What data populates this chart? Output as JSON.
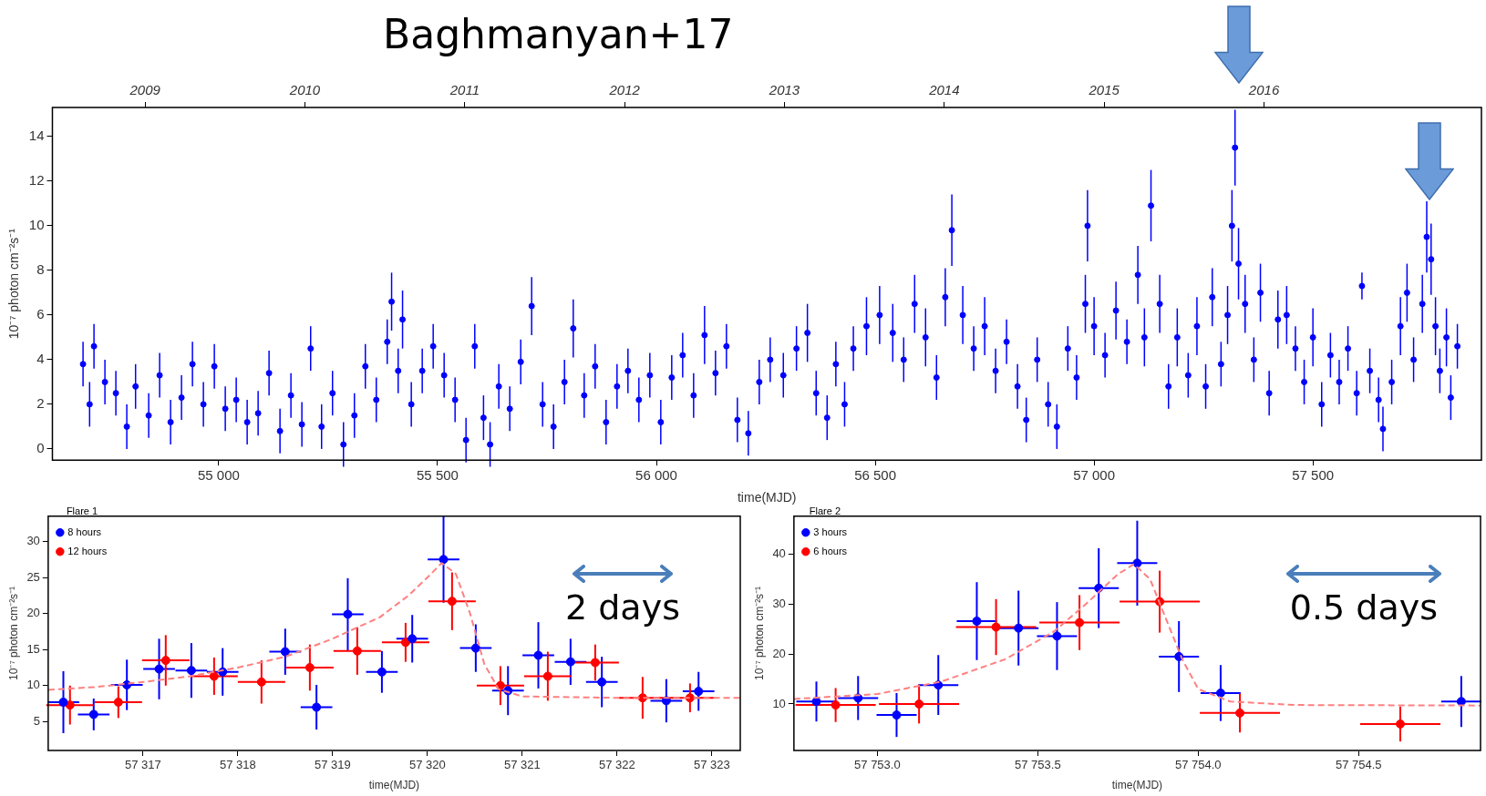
{
  "chart_data": [
    {
      "type": "scatter",
      "title": "Baghmanyan+17",
      "xlabel": "time(MJD)",
      "ylabel": "10⁻⁷ photon cm⁻²s⁻¹",
      "marker": "circle",
      "xlim": [
        54620,
        57885
      ],
      "xticks": [
        {
          "value": 55000,
          "label": "55 000"
        },
        {
          "value": 55500,
          "label": "55 500"
        },
        {
          "value": 56000,
          "label": "56 000"
        },
        {
          "value": 56500,
          "label": "56 500"
        },
        {
          "value": 57000,
          "label": "57 000"
        },
        {
          "value": 57500,
          "label": "57 500"
        }
      ],
      "x2lim": [
        2008.42,
        2017.36
      ],
      "x2ticks": [
        2009,
        2010,
        2011,
        2012,
        2013,
        2014,
        2015,
        2016
      ],
      "ylim": [
        -0.5,
        15.3
      ],
      "yticks": [
        0,
        2,
        4,
        6,
        8,
        10,
        12,
        14
      ],
      "series": [
        {
          "color": "#0000ff",
          "x": [
            54690,
            54705,
            54715,
            54740,
            54765,
            54790,
            54810,
            54840,
            54865,
            54890,
            54915,
            54940,
            54965,
            54990,
            55015,
            55040,
            55065,
            55090,
            55115,
            55140,
            55165,
            55190,
            55210,
            55235,
            55260,
            55285,
            55310,
            55335,
            55360,
            55385,
            55395,
            55410,
            55420,
            55440,
            55465,
            55490,
            55515,
            55540,
            55565,
            55585,
            55605,
            55620,
            55640,
            55665,
            55690,
            55715,
            55740,
            55765,
            55790,
            55810,
            55835,
            55860,
            55885,
            55910,
            55935,
            55960,
            55985,
            56010,
            56035,
            56060,
            56085,
            56110,
            56135,
            56160,
            56185,
            56210,
            56235,
            56260,
            56290,
            56320,
            56345,
            56365,
            56390,
            56410,
            56430,
            56450,
            56480,
            56510,
            56540,
            56565,
            56590,
            56615,
            56640,
            56660,
            56675,
            56700,
            56725,
            56750,
            56775,
            56800,
            56825,
            56845,
            56870,
            56895,
            56915,
            56940,
            56960,
            56980,
            56985,
            57000,
            57025,
            57050,
            57075,
            57100,
            57115,
            57130,
            57150,
            57170,
            57190,
            57215,
            57235,
            57255,
            57270,
            57290,
            57305,
            57315,
            57322,
            57330,
            57345,
            57365,
            57380,
            57400,
            57420,
            57440,
            57460,
            57480,
            57500,
            57520,
            57540,
            57560,
            57580,
            57600,
            57612,
            57630,
            57650,
            57660,
            57680,
            57700,
            57715,
            57730,
            57750,
            57760,
            57770,
            57780,
            57790,
            57805,
            57815,
            57830
          ],
          "values": [
            3.8,
            2.0,
            4.6,
            3.0,
            2.5,
            1.0,
            2.8,
            1.5,
            3.3,
            1.2,
            2.3,
            3.8,
            2.0,
            3.7,
            1.8,
            2.2,
            1.2,
            1.6,
            3.4,
            0.8,
            2.4,
            1.1,
            4.5,
            1.0,
            2.5,
            0.2,
            1.5,
            3.7,
            2.2,
            4.8,
            6.6,
            3.5,
            5.8,
            2.0,
            3.5,
            4.6,
            3.3,
            2.2,
            0.4,
            4.6,
            1.4,
            0.2,
            2.8,
            1.8,
            3.9,
            6.4,
            2.0,
            1.0,
            3.0,
            5.4,
            2.4,
            3.7,
            1.2,
            2.8,
            3.5,
            2.2,
            3.3,
            1.2,
            3.2,
            4.2,
            2.4,
            5.1,
            3.4,
            4.6,
            1.3,
            0.7,
            3.0,
            4.0,
            3.3,
            4.5,
            5.2,
            2.5,
            1.4,
            3.8,
            2.0,
            4.5,
            5.5,
            6.0,
            5.2,
            4.0,
            6.5,
            5.0,
            3.2,
            6.8,
            9.8,
            6.0,
            4.5,
            5.5,
            3.5,
            4.8,
            2.8,
            1.3,
            4.0,
            2.0,
            1.0,
            4.5,
            3.2,
            6.5,
            10.0,
            5.5,
            4.2,
            6.2,
            4.8,
            7.8,
            5.0,
            10.9,
            6.5,
            2.8,
            5.0,
            3.3,
            5.5,
            2.8,
            6.8,
            3.8,
            6.0,
            10.0,
            13.5,
            8.3,
            6.5,
            4.0,
            7.0,
            2.5,
            5.8,
            6.0,
            4.5,
            3.0,
            5.0,
            2.0,
            4.2,
            3.0,
            4.5,
            2.5,
            7.3,
            3.5,
            2.2,
            0.9,
            3.0,
            5.5,
            7.0,
            4.0,
            6.5,
            9.5,
            8.5,
            5.5,
            3.5,
            5.0,
            2.3,
            4.6
          ],
          "errors": [
            1.0,
            1.0,
            1.0,
            1.0,
            1.0,
            1.0,
            1.0,
            1.0,
            1.0,
            1.0,
            1.0,
            1.0,
            1.0,
            1.0,
            1.0,
            1.0,
            1.0,
            1.0,
            1.0,
            1.0,
            1.0,
            1.0,
            1.0,
            1.0,
            1.0,
            1.0,
            1.0,
            1.0,
            1.0,
            1.0,
            1.3,
            1.0,
            1.3,
            1.0,
            1.0,
            1.0,
            1.0,
            1.0,
            1.0,
            1.0,
            1.0,
            1.0,
            1.0,
            1.0,
            1.0,
            1.3,
            1.0,
            1.0,
            1.0,
            1.3,
            1.0,
            1.0,
            1.0,
            1.0,
            1.0,
            1.0,
            1.0,
            1.0,
            1.0,
            1.0,
            1.0,
            1.3,
            1.0,
            1.0,
            1.0,
            1.0,
            1.0,
            1.0,
            1.0,
            1.0,
            1.3,
            1.0,
            1.0,
            1.0,
            1.0,
            1.0,
            1.3,
            1.3,
            1.3,
            1.0,
            1.3,
            1.3,
            1.0,
            1.3,
            1.6,
            1.3,
            1.0,
            1.3,
            1.0,
            1.0,
            1.0,
            1.0,
            1.0,
            1.0,
            1.0,
            1.0,
            1.0,
            1.3,
            1.6,
            1.3,
            1.0,
            1.3,
            1.0,
            1.3,
            1.3,
            1.6,
            1.3,
            1.0,
            1.3,
            1.0,
            1.3,
            1.0,
            1.3,
            1.0,
            1.3,
            1.6,
            1.7,
            1.6,
            1.3,
            1.0,
            1.3,
            1.0,
            1.3,
            1.3,
            1.0,
            1.0,
            1.3,
            1.0,
            1.0,
            1.0,
            1.0,
            1.0,
            0.6,
            1.0,
            1.0,
            1.0,
            1.0,
            1.3,
            1.3,
            1.0,
            1.3,
            1.6,
            1.6,
            1.3,
            1.0,
            1.3,
            1.0,
            1.0
          ]
        }
      ]
    },
    {
      "type": "scatter",
      "xlabel": "time(MJD)",
      "ylabel": "10⁻⁷ photon cm⁻²s⁻¹",
      "marker": "circle",
      "legend": "top left",
      "legend_title": "Flare 1",
      "annotations": [
        "2 days"
      ],
      "xlim": [
        57316.0,
        57323.3
      ],
      "xticks": [
        {
          "value": 57317,
          "label": "57 317"
        },
        {
          "value": 57318,
          "label": "57 318"
        },
        {
          "value": 57319,
          "label": "57 319"
        },
        {
          "value": 57320,
          "label": "57 320"
        },
        {
          "value": 57321,
          "label": "57 321"
        },
        {
          "value": 57322,
          "label": "57 322"
        },
        {
          "value": 57323,
          "label": "57 323"
        }
      ],
      "ylim": [
        1,
        33.5
      ],
      "yticks": [
        5,
        10,
        15,
        20,
        25,
        30
      ],
      "series": [
        {
          "name": "8 hours",
          "color": "#0000ff",
          "x": [
            57316.16,
            57316.48,
            57316.83,
            57317.17,
            57317.51,
            57317.84,
            57318.5,
            57318.83,
            57319.16,
            57319.52,
            57319.84,
            57320.17,
            57320.51,
            57320.85,
            57321.17,
            57321.51,
            57321.84,
            57322.52,
            57322.86
          ],
          "values": [
            7.7,
            6.0,
            10.1,
            12.3,
            12.1,
            11.9,
            14.7,
            7.0,
            19.9,
            11.9,
            16.5,
            27.5,
            15.2,
            9.3,
            14.2,
            13.3,
            10.5,
            7.9,
            9.2
          ],
          "errors": [
            4.3,
            2.2,
            3.5,
            4.2,
            3.8,
            3.3,
            3.2,
            3.1,
            5.0,
            2.9,
            3.3,
            6.0,
            3.3,
            3.4,
            4.6,
            3.2,
            3.5,
            3.0,
            2.7
          ],
          "xerrors": [
            0.167,
            0.167,
            0.167,
            0.167,
            0.167,
            0.167,
            0.167,
            0.167,
            0.167,
            0.167,
            0.167,
            0.167,
            0.167,
            0.167,
            0.167,
            0.167,
            0.167,
            0.167,
            0.167
          ]
        },
        {
          "name": "12 hours",
          "color": "#ff0000",
          "x": [
            57316.23,
            57316.74,
            57317.24,
            57317.75,
            57318.25,
            57318.76,
            57319.26,
            57319.77,
            57320.26,
            57320.77,
            57321.27,
            57321.77,
            57322.27,
            57322.77
          ],
          "values": [
            7.3,
            7.7,
            13.5,
            11.3,
            10.5,
            12.5,
            14.8,
            16.0,
            21.7,
            10.0,
            11.3,
            13.2,
            8.3,
            8.3
          ],
          "errors": [
            2.7,
            2.2,
            3.5,
            2.6,
            3.0,
            3.2,
            3.3,
            2.7,
            4.0,
            2.7,
            3.4,
            2.5,
            2.9,
            2.0
          ],
          "xerrors": [
            0.25,
            0.25,
            0.25,
            0.25,
            0.25,
            0.25,
            0.25,
            0.25,
            0.25,
            0.25,
            0.25,
            0.25,
            0.25,
            0.25
          ]
        },
        {
          "type": "line",
          "marker": "none",
          "color": "#ff8080",
          "line_style": "dashed",
          "x": [
            57316.0,
            57316.5,
            57317.0,
            57317.5,
            57318.0,
            57318.5,
            57319.0,
            57319.5,
            57319.8,
            57320.0,
            57320.15,
            57320.3,
            57320.45,
            57320.6,
            57320.75,
            57321.0,
            57322.0,
            57323.3
          ],
          "values": [
            9.4,
            9.8,
            10.5,
            11.3,
            12.5,
            14.0,
            16.5,
            19.5,
            22.5,
            25.0,
            27.0,
            25.5,
            20.0,
            13.0,
            9.5,
            8.5,
            8.3,
            8.3
          ]
        }
      ]
    },
    {
      "type": "scatter",
      "xlabel": "time(MJD)",
      "ylabel": "10⁻⁷ photon cm⁻²s⁻¹",
      "marker": "circle",
      "legend": "top left",
      "legend_title": "Flare 2",
      "annotations": [
        "0.5 days"
      ],
      "xlim": [
        57752.74,
        57754.88
      ],
      "xticks": [
        {
          "value": 57753.0,
          "label": "57 753.0"
        },
        {
          "value": 57753.5,
          "label": "57 753.5"
        },
        {
          "value": 57754.0,
          "label": "57 754.0"
        },
        {
          "value": 57754.5,
          "label": "57 754.5"
        }
      ],
      "ylim": [
        0.7,
        47.6
      ],
      "yticks": [
        10,
        20,
        30,
        40
      ],
      "series": [
        {
          "name": "3 hours",
          "color": "#0000ff",
          "x": [
            57752.81,
            57752.94,
            57753.06,
            57753.19,
            57753.31,
            57753.44,
            57753.56,
            57753.69,
            57753.81,
            57753.94,
            57754.07,
            57754.82
          ],
          "values": [
            10.5,
            11.2,
            7.8,
            13.8,
            26.6,
            25.2,
            23.6,
            33.2,
            38.2,
            19.5,
            12.2,
            10.5
          ],
          "errors": [
            4.0,
            4.4,
            4.4,
            6.0,
            7.8,
            7.5,
            6.8,
            8.0,
            8.5,
            7.1,
            5.6,
            5.1
          ],
          "xerrors": [
            0.0625,
            0.0625,
            0.0625,
            0.0625,
            0.0625,
            0.0625,
            0.0625,
            0.0625,
            0.0625,
            0.0625,
            0.0625,
            0.0625
          ]
        },
        {
          "name": "6 hours",
          "color": "#ff0000",
          "x": [
            57752.87,
            57753.13,
            57753.37,
            57753.63,
            57753.88,
            57754.13,
            57754.63
          ],
          "values": [
            9.8,
            10.0,
            25.4,
            26.3,
            30.5,
            8.2,
            6.0
          ],
          "errors": [
            3.4,
            3.9,
            5.6,
            5.5,
            6.2,
            3.9,
            3.5
          ],
          "xerrors": [
            0.125,
            0.125,
            0.125,
            0.125,
            0.125,
            0.125,
            0.125
          ]
        },
        {
          "type": "line",
          "marker": "none",
          "color": "#ff8080",
          "line_style": "dashed",
          "x": [
            57752.74,
            57753.0,
            57753.2,
            57753.4,
            57753.55,
            57753.65,
            57753.75,
            57753.8,
            57753.85,
            57753.9,
            57753.95,
            57754.0,
            57754.1,
            57754.3,
            57754.88
          ],
          "values": [
            11.0,
            12.0,
            14.5,
            19.0,
            24.5,
            30.0,
            36.0,
            38.0,
            35.0,
            27.0,
            19.0,
            13.0,
            10.5,
            9.8,
            9.7
          ]
        }
      ]
    }
  ]
}
